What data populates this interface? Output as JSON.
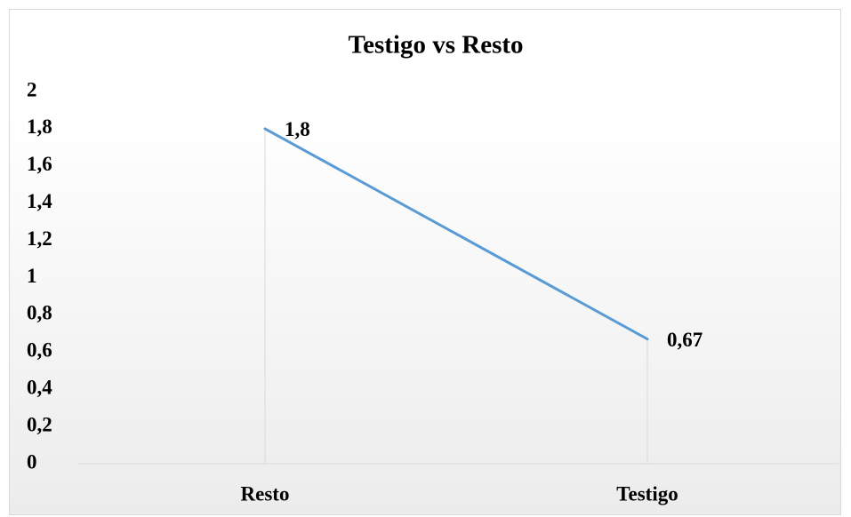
{
  "chart_data": {
    "type": "line",
    "title": "Testigo vs Resto",
    "categories": [
      "Resto",
      "Testigo"
    ],
    "values": [
      1.8,
      0.67
    ],
    "value_labels": [
      "1,8",
      "0,67"
    ],
    "color": "#5b9bd5",
    "ylim": [
      0,
      2
    ],
    "yticks": [
      0,
      {
        "value": 0.2,
        "label": "0,2"
      },
      {
        "value": 0.4,
        "label": "0,4"
      },
      {
        "value": 0.6,
        "label": "0,6"
      },
      {
        "value": 0.8,
        "label": "0,8"
      },
      1,
      {
        "value": 1.2,
        "label": "1,2"
      },
      {
        "value": 1.4,
        "label": "1,4"
      },
      {
        "value": 1.6,
        "label": "1,6"
      },
      {
        "value": 1.8,
        "label": "1,8"
      },
      2
    ],
    "grid": false
  }
}
